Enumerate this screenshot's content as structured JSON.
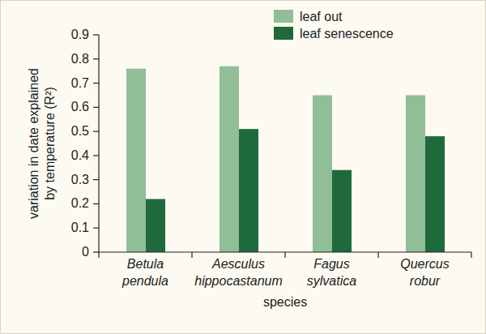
{
  "chart_data": {
    "type": "bar",
    "categories": [
      "Betula pendula",
      "Aesculus hippocastanum",
      "Fagus sylvatica",
      "Quercus robur"
    ],
    "series": [
      {
        "name": "leaf out",
        "color": "#8fbe97",
        "values": [
          0.76,
          0.77,
          0.65,
          0.65
        ]
      },
      {
        "name": "leaf senescence",
        "color": "#1f6a3d",
        "values": [
          0.22,
          0.51,
          0.34,
          0.48
        ]
      }
    ],
    "x_label": "species",
    "y_label": [
      "variation in date explained",
      "by temperature (R²)"
    ],
    "ylim": [
      0,
      0.9
    ],
    "yticks": [
      0,
      0.1,
      0.2,
      0.3,
      0.4,
      0.5,
      0.6,
      0.7,
      0.8,
      0.9
    ],
    "grid": false,
    "legend": "top"
  }
}
